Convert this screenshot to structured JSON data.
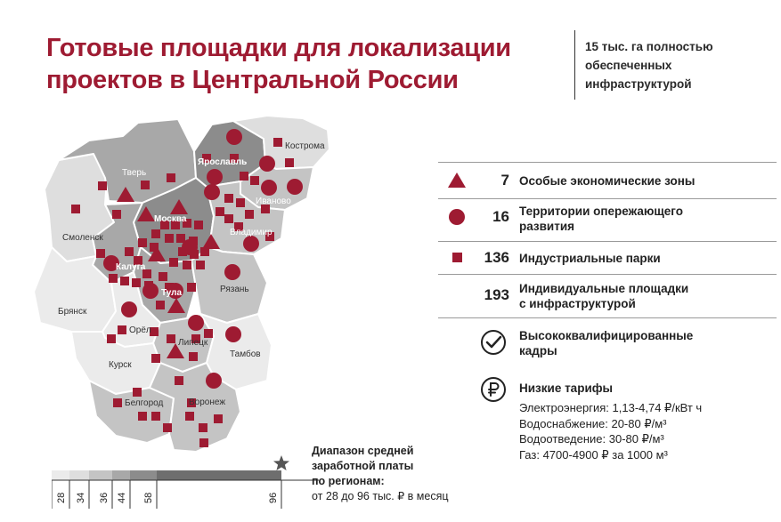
{
  "header": {
    "title_line1": "Готовые площадки для локализации",
    "title_line2": "проектов в Центральной России",
    "subtitle_line1": "15 тыс. га полностью",
    "subtitle_line2": "обеспеченных",
    "subtitle_line3": "инфраструктурой"
  },
  "colors": {
    "brand": "#9e1b32",
    "region_dark": "#8c8c8c",
    "region_mid": "#a8a8a8",
    "region_light": "#c4c4c4",
    "region_pale": "#dedede",
    "region_palest": "#ebebeb"
  },
  "map": {
    "regions": [
      {
        "label": "Кострома"
      },
      {
        "label": "Ярославль"
      },
      {
        "label": "Тверь"
      },
      {
        "label": "Иваново"
      },
      {
        "label": "Москва"
      },
      {
        "label": "Владимир"
      },
      {
        "label": "Смоленск"
      },
      {
        "label": "Калуга"
      },
      {
        "label": "Тула"
      },
      {
        "label": "Рязань"
      },
      {
        "label": "Брянск"
      },
      {
        "label": "Орёл"
      },
      {
        "label": "Липецк"
      },
      {
        "label": "Тамбов"
      },
      {
        "label": "Курск"
      },
      {
        "label": "Белгород"
      },
      {
        "label": "Воронеж"
      }
    ]
  },
  "legend": {
    "items": [
      {
        "icon": "triangle-icon",
        "count": "7",
        "text_line1": "Особые экономические зоны",
        "text_line2": ""
      },
      {
        "icon": "circle-icon",
        "count": "16",
        "text_line1": "Территории опережающего",
        "text_line2": "развития"
      },
      {
        "icon": "square-icon",
        "count": "136",
        "text_line1": "Индустриальные парки",
        "text_line2": ""
      },
      {
        "icon": "",
        "count": "193",
        "text_line1": "Индивидуальные площадки",
        "text_line2": "с инфраструктурой"
      },
      {
        "icon": "checkmark-icon",
        "count": "",
        "text_line1": "Высококвалифицированные",
        "text_line2": "кадры"
      },
      {
        "icon": "ruble-icon",
        "count": "",
        "text_line1": "Низкие тарифы",
        "text_line2": ""
      }
    ],
    "tariffs": [
      "Электроэнергия: 1,13-4,74 ₽/кВт ч",
      "Водоснабжение: 20-80 ₽/м³",
      "Водоотведение: 30-80 ₽/м³",
      "Газ: 4700-4900 ₽ за 1000 м³"
    ]
  },
  "salary_scale": {
    "title_line1": "Диапазон средней",
    "title_line2": "заработной платы",
    "title_line3": "по регионам:",
    "range_text": "от 28 до 96 тыс. ₽ в месяц",
    "ticks": [
      "28",
      "34",
      "36",
      "44",
      "58",
      "96"
    ],
    "star_icon": "star-icon"
  }
}
